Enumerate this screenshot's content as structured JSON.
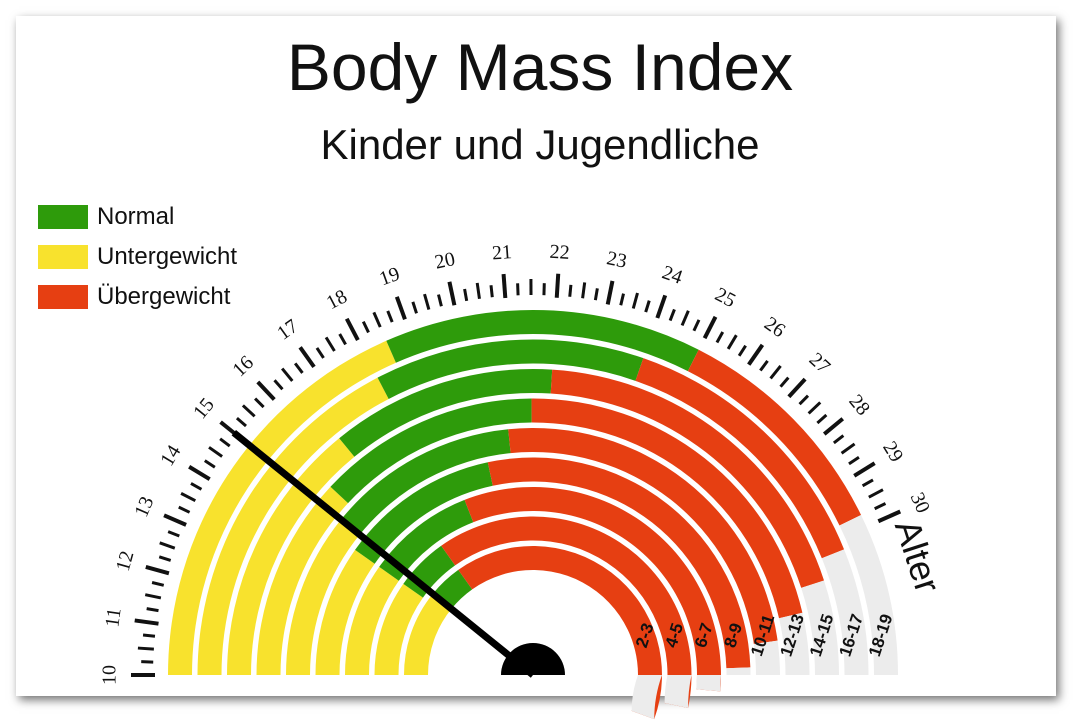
{
  "chart_data": {
    "type": "gauge",
    "title": "Body Mass Index",
    "subtitle": "Kinder und Jugendliche",
    "legend": [
      {
        "label": "Normal",
        "color": "#2e9b0b"
      },
      {
        "label": "Untergewicht",
        "color": "#f8e22d"
      },
      {
        "label": "Übergewicht",
        "color": "#e63f12"
      }
    ],
    "scale": {
      "min": 10,
      "max": 30,
      "tick_labels": [
        10,
        11,
        12,
        13,
        14,
        15,
        16,
        17,
        18,
        19,
        20,
        21,
        22,
        23,
        24,
        25,
        26,
        27,
        28,
        29,
        30
      ]
    },
    "age_axis_label": "Alter",
    "rings": [
      {
        "age": "2-3",
        "normal": [
          15,
          17
        ]
      },
      {
        "age": "4-5",
        "normal": [
          14.5,
          17
        ]
      },
      {
        "age": "6-7",
        "normal": [
          14.5,
          18.8
        ]
      },
      {
        "age": "8-9",
        "normal": [
          14.5,
          20
        ]
      },
      {
        "age": "10-11",
        "normal": [
          15,
          20.8
        ]
      },
      {
        "age": "12-13",
        "normal": [
          15.5,
          21.5
        ]
      },
      {
        "age": "14-15",
        "normal": [
          16.5,
          22
        ]
      },
      {
        "age": "16-17",
        "normal": [
          18,
          24
        ]
      },
      {
        "age": "18-19",
        "normal": [
          18.5,
          25
        ]
      }
    ],
    "needle_value": 15,
    "colors": {
      "empty": "#ececec",
      "tick": "#111111",
      "needle": "#000000"
    }
  }
}
